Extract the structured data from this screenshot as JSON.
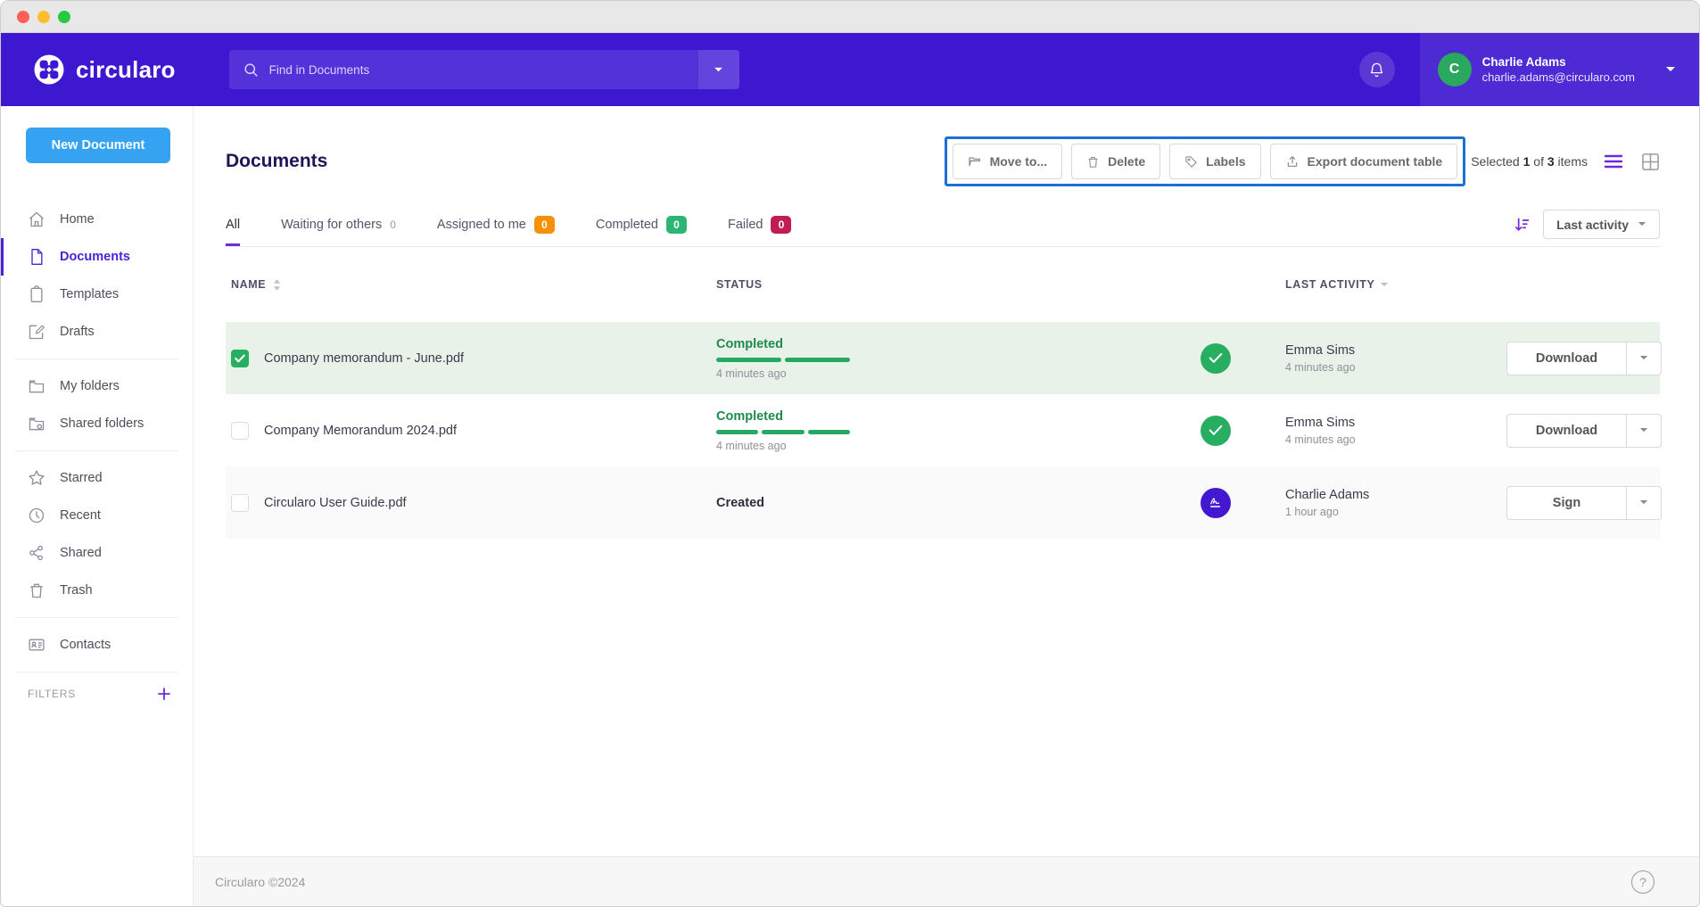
{
  "header": {
    "brand": "circularo",
    "search": {
      "placeholder": "Find in Documents"
    },
    "user": {
      "name": "Charlie Adams",
      "email": "charlie.adams@circularo.com",
      "avatar_initial": "C"
    }
  },
  "sidebar": {
    "new_document_label": "New Document",
    "items": [
      {
        "label": "Home",
        "icon": "home-icon"
      },
      {
        "label": "Documents",
        "icon": "document-icon",
        "active": true
      },
      {
        "label": "Templates",
        "icon": "template-icon"
      },
      {
        "label": "Drafts",
        "icon": "draft-icon"
      },
      {
        "label": "My folders",
        "icon": "folder-icon"
      },
      {
        "label": "Shared folders",
        "icon": "shared-folder-icon"
      },
      {
        "label": "Starred",
        "icon": "star-icon"
      },
      {
        "label": "Recent",
        "icon": "clock-icon"
      },
      {
        "label": "Shared",
        "icon": "share-icon"
      },
      {
        "label": "Trash",
        "icon": "trash-icon"
      },
      {
        "label": "Contacts",
        "icon": "contacts-icon"
      }
    ],
    "filters_label": "FILTERS"
  },
  "page": {
    "title": "Documents",
    "toolbar": {
      "move_to": "Move to...",
      "delete": "Delete",
      "labels": "Labels",
      "export": "Export document table"
    },
    "selection": {
      "prefix": "Selected",
      "selected_count": "1",
      "of": "of",
      "total_count": "3",
      "suffix": "items"
    },
    "tabs": [
      {
        "label": "All",
        "active": true
      },
      {
        "label": "Waiting for others",
        "count": "0"
      },
      {
        "label": "Assigned to me",
        "count": "0",
        "badge_color": "#f79009"
      },
      {
        "label": "Completed",
        "count": "0",
        "badge_color": "#2cb573"
      },
      {
        "label": "Failed",
        "count": "0",
        "badge_color": "#c01d56"
      }
    ],
    "sort": {
      "label": "Last activity"
    }
  },
  "table": {
    "columns": {
      "name": "NAME",
      "status": "STATUS",
      "last_activity": "LAST ACTIVITY"
    },
    "rows": [
      {
        "name": "Company memorandum - June.pdf",
        "selected": true,
        "status": "Completed",
        "progress_segments": 2,
        "status_time": "4 minutes ago",
        "actor": "Emma Sims",
        "activity_time": "4 minutes ago",
        "action": "Download"
      },
      {
        "name": "Company Memorandum 2024.pdf",
        "selected": false,
        "status": "Completed",
        "progress_segments": 3,
        "status_time": "4 minutes ago",
        "actor": "Emma Sims",
        "activity_time": "4 minutes ago",
        "action": "Download"
      },
      {
        "name": "Circularo User Guide.pdf",
        "selected": false,
        "status": "Created",
        "actor": "Charlie Adams",
        "activity_time": "1 hour ago",
        "action": "Sign"
      }
    ]
  },
  "footer": {
    "copyright": "Circularo ©2024",
    "help": "?"
  },
  "colors": {
    "header_purple": "#3e18d0",
    "accent_purple": "#6d2ad8",
    "highlight_blue": "#1e6fd2",
    "new_doc_blue": "#35a3f2",
    "success_green": "#27ae60",
    "selected_row_green": "#e9f2e9",
    "badge_orange": "#f79009",
    "badge_green": "#2cb573",
    "badge_red": "#c01d56",
    "avatar_green": "#2aa85f"
  }
}
